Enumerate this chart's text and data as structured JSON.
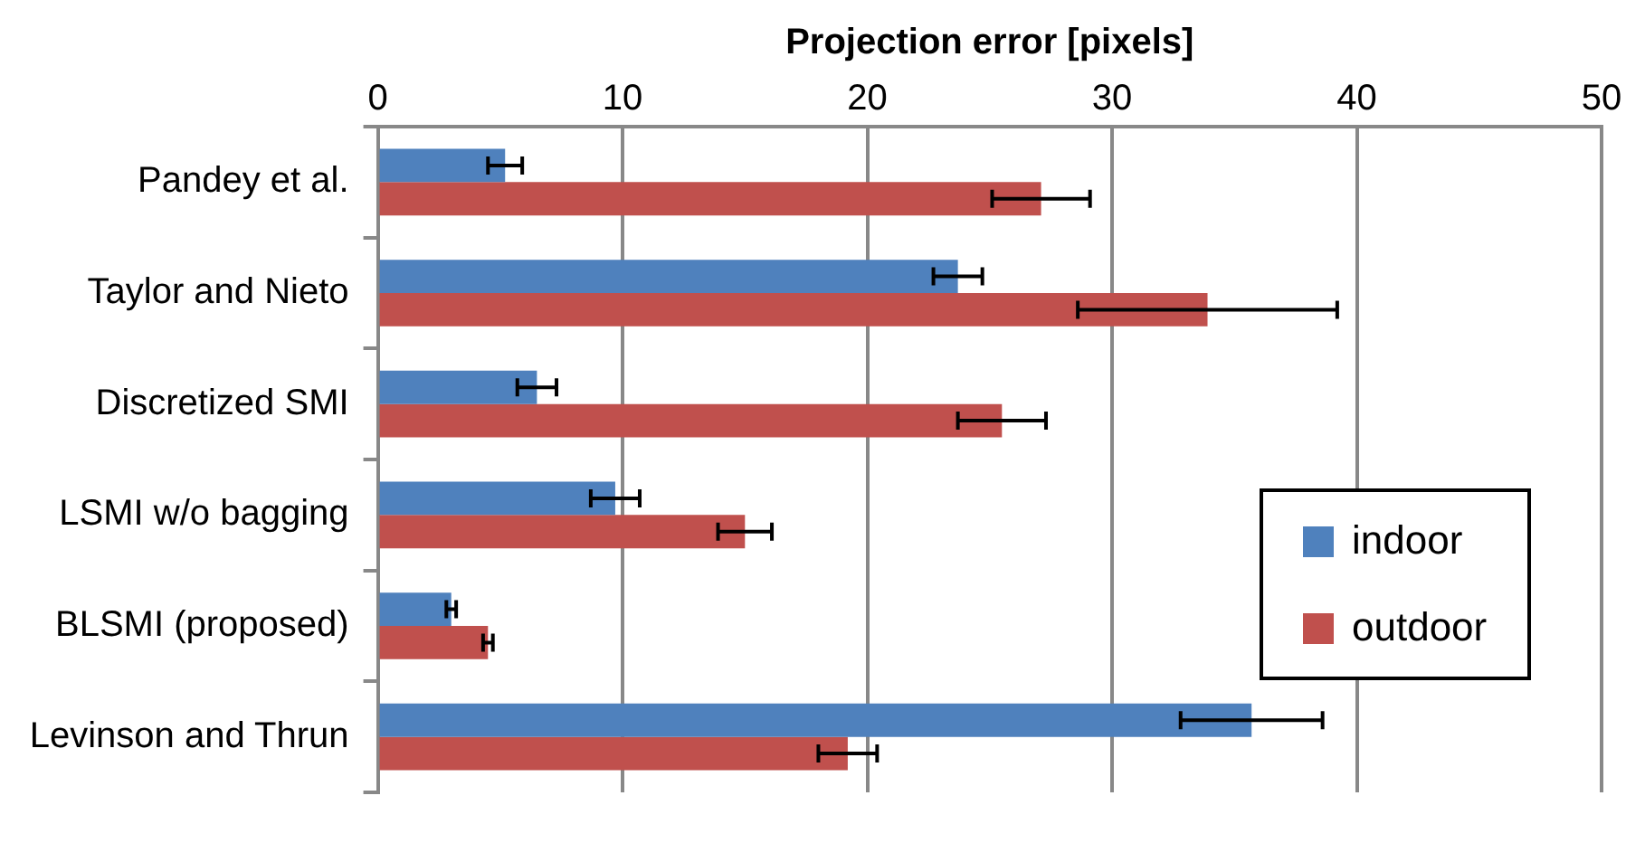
{
  "chart_data": {
    "type": "bar",
    "orientation": "horizontal",
    "xlabel": "Projection error [pixels]",
    "categories": [
      "Pandey et al.",
      "Taylor and Nieto",
      "Discretized SMI",
      "LSMI w/o bagging",
      "BLSMI (proposed)",
      "Levinson and Thrun"
    ],
    "series": [
      {
        "name": "indoor",
        "color": "#4f81bd",
        "values": [
          5.2,
          23.7,
          6.5,
          9.7,
          3.0,
          35.7
        ],
        "errors": [
          0.7,
          1.0,
          0.8,
          1.0,
          0.2,
          2.9
        ]
      },
      {
        "name": "outdoor",
        "color": "#c0504d",
        "values": [
          27.1,
          33.9,
          25.5,
          15.0,
          4.5,
          19.2
        ],
        "errors": [
          2.0,
          5.3,
          1.8,
          1.1,
          0.2,
          1.2
        ]
      }
    ],
    "xlim": [
      0,
      50
    ],
    "xticks": [
      0,
      10,
      20,
      30,
      40,
      50
    ],
    "grid": "x",
    "legend": "bottom right"
  }
}
